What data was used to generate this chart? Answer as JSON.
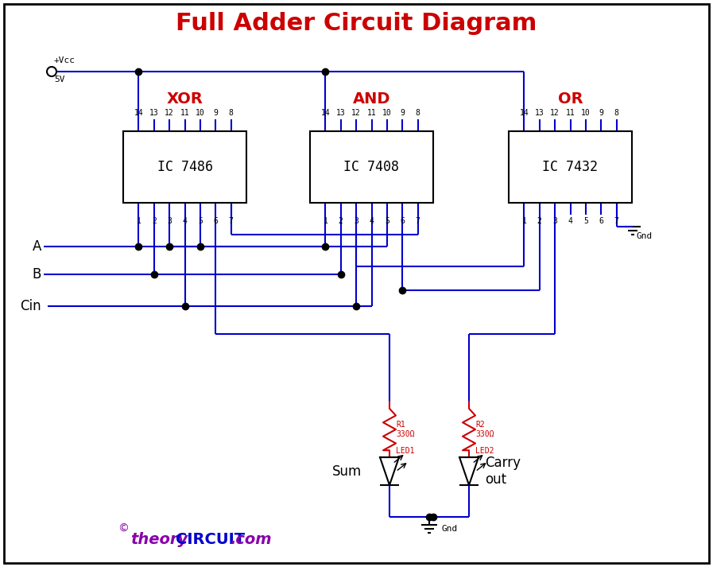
{
  "title": "Full Adder Circuit Diagram",
  "title_color": "#cc0000",
  "title_fontsize": 22,
  "bg_color": "#ffffff",
  "border_color": "#000000",
  "wire_color": "#0000cc",
  "black": "#000000",
  "red": "#cc0000",
  "blue_dark": "#0000aa",
  "ic_xor_label": "IC 7486",
  "ic_and_label": "IC 7408",
  "ic_or_label": "IC 7432",
  "xor_label": "XOR",
  "and_label": "AND",
  "or_label": "OR",
  "watermark_theory": "theory",
  "watermark_circuit": "CIRCUIT",
  "watermark_com": ".com",
  "watermark_copy": "©",
  "watermark_color_theory": "#8800aa",
  "watermark_color_circuit": "#0000cc",
  "watermark_color_com": "#8800aa",
  "vcc_label": "+Vcc",
  "v5_label": "5V",
  "gnd_label": "Gnd",
  "input_a": "A",
  "input_b": "B",
  "input_cin": "Cin",
  "r1_label": "R1\n330Ω",
  "r2_label": "R2\n330Ω",
  "led1_label": "LED1",
  "led2_label": "LED2",
  "sum_label": "Sum",
  "carry_label": "Carry\nout"
}
